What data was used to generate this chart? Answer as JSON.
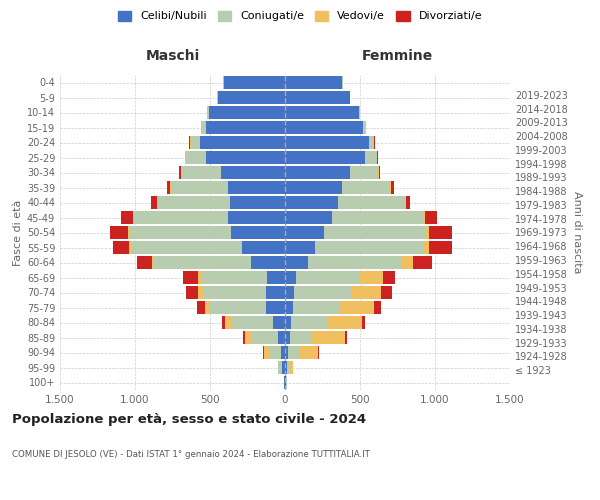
{
  "age_groups": [
    "100+",
    "95-99",
    "90-94",
    "85-89",
    "80-84",
    "75-79",
    "70-74",
    "65-69",
    "60-64",
    "55-59",
    "50-54",
    "45-49",
    "40-44",
    "35-39",
    "30-34",
    "25-29",
    "20-24",
    "15-19",
    "10-14",
    "5-9",
    "0-4"
  ],
  "birth_years": [
    "≤ 1923",
    "1924-1928",
    "1929-1933",
    "1934-1938",
    "1939-1943",
    "1944-1948",
    "1949-1953",
    "1954-1958",
    "1959-1963",
    "1964-1968",
    "1969-1973",
    "1974-1978",
    "1979-1983",
    "1984-1988",
    "1989-1993",
    "1994-1998",
    "1999-2003",
    "2004-2008",
    "2009-2013",
    "2014-2018",
    "2019-2023"
  ],
  "male_celibi": [
    5,
    20,
    30,
    50,
    80,
    130,
    130,
    120,
    230,
    290,
    360,
    380,
    370,
    380,
    430,
    530,
    570,
    530,
    510,
    450,
    410
  ],
  "male_coniugati": [
    5,
    25,
    80,
    180,
    280,
    370,
    420,
    440,
    650,
    740,
    680,
    630,
    480,
    380,
    260,
    130,
    60,
    30,
    10,
    5,
    5
  ],
  "male_vedovi": [
    0,
    5,
    30,
    40,
    40,
    35,
    30,
    20,
    10,
    10,
    5,
    5,
    5,
    5,
    5,
    5,
    5,
    0,
    0,
    0,
    0
  ],
  "male_divorziati": [
    0,
    0,
    5,
    10,
    20,
    50,
    80,
    100,
    100,
    110,
    120,
    80,
    40,
    20,
    10,
    5,
    5,
    0,
    0,
    0,
    0
  ],
  "female_celibi": [
    5,
    10,
    20,
    30,
    40,
    50,
    60,
    70,
    150,
    200,
    260,
    310,
    350,
    380,
    430,
    530,
    560,
    520,
    490,
    430,
    380
  ],
  "female_coniugati": [
    5,
    20,
    70,
    150,
    240,
    310,
    380,
    430,
    620,
    720,
    680,
    610,
    450,
    320,
    190,
    80,
    30,
    20,
    10,
    5,
    5
  ],
  "female_vedovi": [
    0,
    20,
    130,
    220,
    230,
    230,
    200,
    150,
    80,
    40,
    20,
    10,
    5,
    5,
    5,
    5,
    5,
    0,
    0,
    0,
    0
  ],
  "female_divorziati": [
    0,
    0,
    5,
    10,
    20,
    50,
    70,
    80,
    130,
    150,
    150,
    80,
    30,
    20,
    10,
    5,
    5,
    0,
    0,
    0,
    0
  ],
  "colors": {
    "celibi": "#4472C4",
    "coniugati": "#B8CCB0",
    "vedovi": "#F0C060",
    "divorziati": "#CC2222"
  },
  "title": "Popolazione per età, sesso e stato civile - 2024",
  "subtitle": "COMUNE DI JESOLO (VE) - Dati ISTAT 1° gennaio 2024 - Elaborazione TUTTITALIA.IT",
  "xlabel_left": "Maschi",
  "xlabel_right": "Femmine",
  "ylabel_left": "Fasce di età",
  "ylabel_right": "Anni di nascita",
  "xlim": 1500,
  "legend_labels": [
    "Celibi/Nubili",
    "Coniugati/e",
    "Vedovi/e",
    "Divorziati/e"
  ],
  "background_color": "#ffffff",
  "grid_color": "#cccccc"
}
